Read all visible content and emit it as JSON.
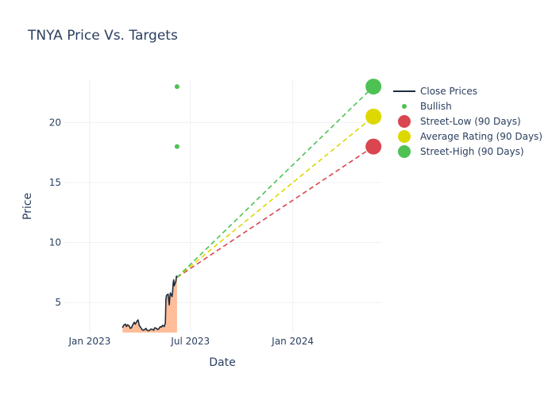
{
  "chart_data": {
    "type": "line",
    "title": "TNYA Price Vs. Targets",
    "xlabel": "Date",
    "ylabel": "Price",
    "x_ticks": [
      {
        "date": "2023-01-01",
        "label": "Jan 2023"
      },
      {
        "date": "2023-07-01",
        "label": "Jul 2023"
      },
      {
        "date": "2024-01-01",
        "label": "Jan 2024"
      }
    ],
    "y_ticks": [
      5,
      10,
      15,
      20
    ],
    "xlim": [
      "2022-11-15",
      "2024-06-08"
    ],
    "ylim": [
      2.5,
      23.6
    ],
    "grid": true,
    "legend_position": "right",
    "colors": {
      "close": "#1f2d3d",
      "fill": "#ffbe99",
      "bullish": "#4dc253",
      "street_low": "#d9464f",
      "average": "#dcd800",
      "street_high": "#4dc253",
      "grid": "#eef0f3",
      "text": "#2a3f5f"
    },
    "close_prices": [
      [
        "2023-03-01",
        2.9
      ],
      [
        "2023-03-03",
        3.1
      ],
      [
        "2023-03-06",
        3.2
      ],
      [
        "2023-03-08",
        3.0
      ],
      [
        "2023-03-10",
        3.15
      ],
      [
        "2023-03-13",
        3.05
      ],
      [
        "2023-03-15",
        2.85
      ],
      [
        "2023-03-17",
        2.9
      ],
      [
        "2023-03-20",
        3.2
      ],
      [
        "2023-03-22",
        3.35
      ],
      [
        "2023-03-24",
        3.2
      ],
      [
        "2023-03-27",
        3.45
      ],
      [
        "2023-03-29",
        3.55
      ],
      [
        "2023-03-31",
        3.1
      ],
      [
        "2023-04-03",
        2.9
      ],
      [
        "2023-04-05",
        2.75
      ],
      [
        "2023-04-07",
        2.7
      ],
      [
        "2023-04-10",
        2.75
      ],
      [
        "2023-04-12",
        2.85
      ],
      [
        "2023-04-14",
        2.7
      ],
      [
        "2023-04-17",
        2.65
      ],
      [
        "2023-04-19",
        2.7
      ],
      [
        "2023-04-21",
        2.8
      ],
      [
        "2023-04-24",
        2.75
      ],
      [
        "2023-04-26",
        2.7
      ],
      [
        "2023-04-28",
        2.9
      ],
      [
        "2023-05-01",
        2.85
      ],
      [
        "2023-05-03",
        2.75
      ],
      [
        "2023-05-05",
        2.8
      ],
      [
        "2023-05-08",
        3.0
      ],
      [
        "2023-05-10",
        2.95
      ],
      [
        "2023-05-12",
        3.1
      ],
      [
        "2023-05-15",
        3.0
      ],
      [
        "2023-05-17",
        3.3
      ],
      [
        "2023-05-18",
        5.3
      ],
      [
        "2023-05-19",
        5.6
      ],
      [
        "2023-05-22",
        5.7
      ],
      [
        "2023-05-23",
        5.2
      ],
      [
        "2023-05-24",
        4.8
      ],
      [
        "2023-05-25",
        5.4
      ],
      [
        "2023-05-26",
        5.8
      ],
      [
        "2023-05-29",
        5.5
      ],
      [
        "2023-05-30",
        5.9
      ],
      [
        "2023-05-31",
        6.6
      ],
      [
        "2023-06-01",
        6.9
      ],
      [
        "2023-06-02",
        6.4
      ],
      [
        "2023-06-05",
        6.8
      ],
      [
        "2023-06-06",
        7.2
      ],
      [
        "2023-06-07",
        7.1
      ]
    ],
    "bullish": [
      {
        "date": "2023-06-07",
        "price": 23.0
      },
      {
        "date": "2023-06-07",
        "price": 18.0
      }
    ],
    "forecast_start": {
      "date": "2023-06-07",
      "price": 7.1
    },
    "targets": {
      "date": "2024-05-25",
      "street_low": 18.0,
      "average": 20.5,
      "street_high": 23.0
    },
    "legend": [
      {
        "key": "close",
        "label": "Close Prices",
        "kind": "line"
      },
      {
        "key": "bullish",
        "label": "Bullish",
        "kind": "small-dot"
      },
      {
        "key": "street_low",
        "label": "Street-Low (90 Days)",
        "kind": "big-dot"
      },
      {
        "key": "average",
        "label": "Average Rating (90 Days)",
        "kind": "big-dot"
      },
      {
        "key": "street_high",
        "label": "Street-High (90 Days)",
        "kind": "big-dot"
      }
    ]
  }
}
